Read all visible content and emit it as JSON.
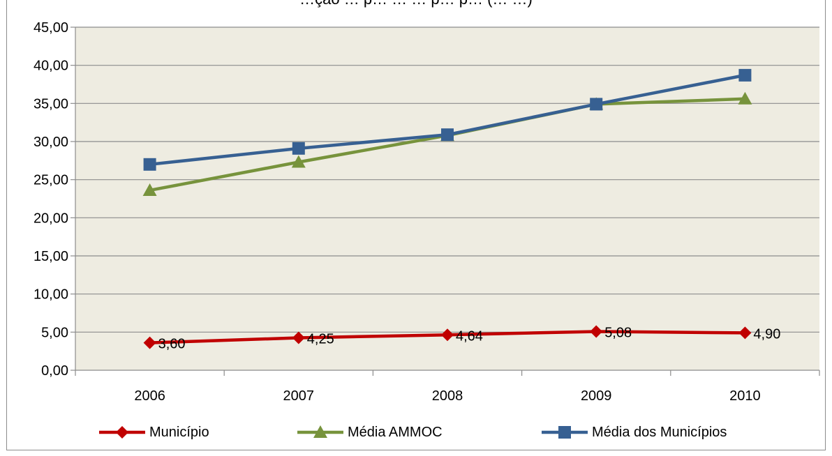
{
  "chart_data": {
    "type": "line",
    "title": "…ção … p… … … p… p… (… …)",
    "categories": [
      "2006",
      "2007",
      "2008",
      "2009",
      "2010"
    ],
    "ylim": [
      0,
      45
    ],
    "yticks": [
      "0,00",
      "5,00",
      "10,00",
      "15,00",
      "20,00",
      "25,00",
      "30,00",
      "35,00",
      "40,00",
      "45,00"
    ],
    "grid": true,
    "legend_position": "bottom",
    "plot_background": "#eeece1",
    "series": [
      {
        "name": "Município",
        "color": "#c00000",
        "marker": "diamond",
        "values": [
          3.6,
          4.25,
          4.64,
          5.08,
          4.9
        ],
        "data_labels": [
          "3,60",
          "4,25",
          "4,64",
          "5,08",
          "4,90"
        ]
      },
      {
        "name": "Média AMMOC",
        "color": "#77933c",
        "marker": "triangle",
        "values": [
          23.6,
          27.3,
          30.8,
          34.9,
          35.6
        ]
      },
      {
        "name": "Média dos Municípios",
        "color": "#376092",
        "marker": "square",
        "values": [
          27.0,
          29.1,
          30.9,
          34.9,
          38.7
        ]
      }
    ]
  }
}
